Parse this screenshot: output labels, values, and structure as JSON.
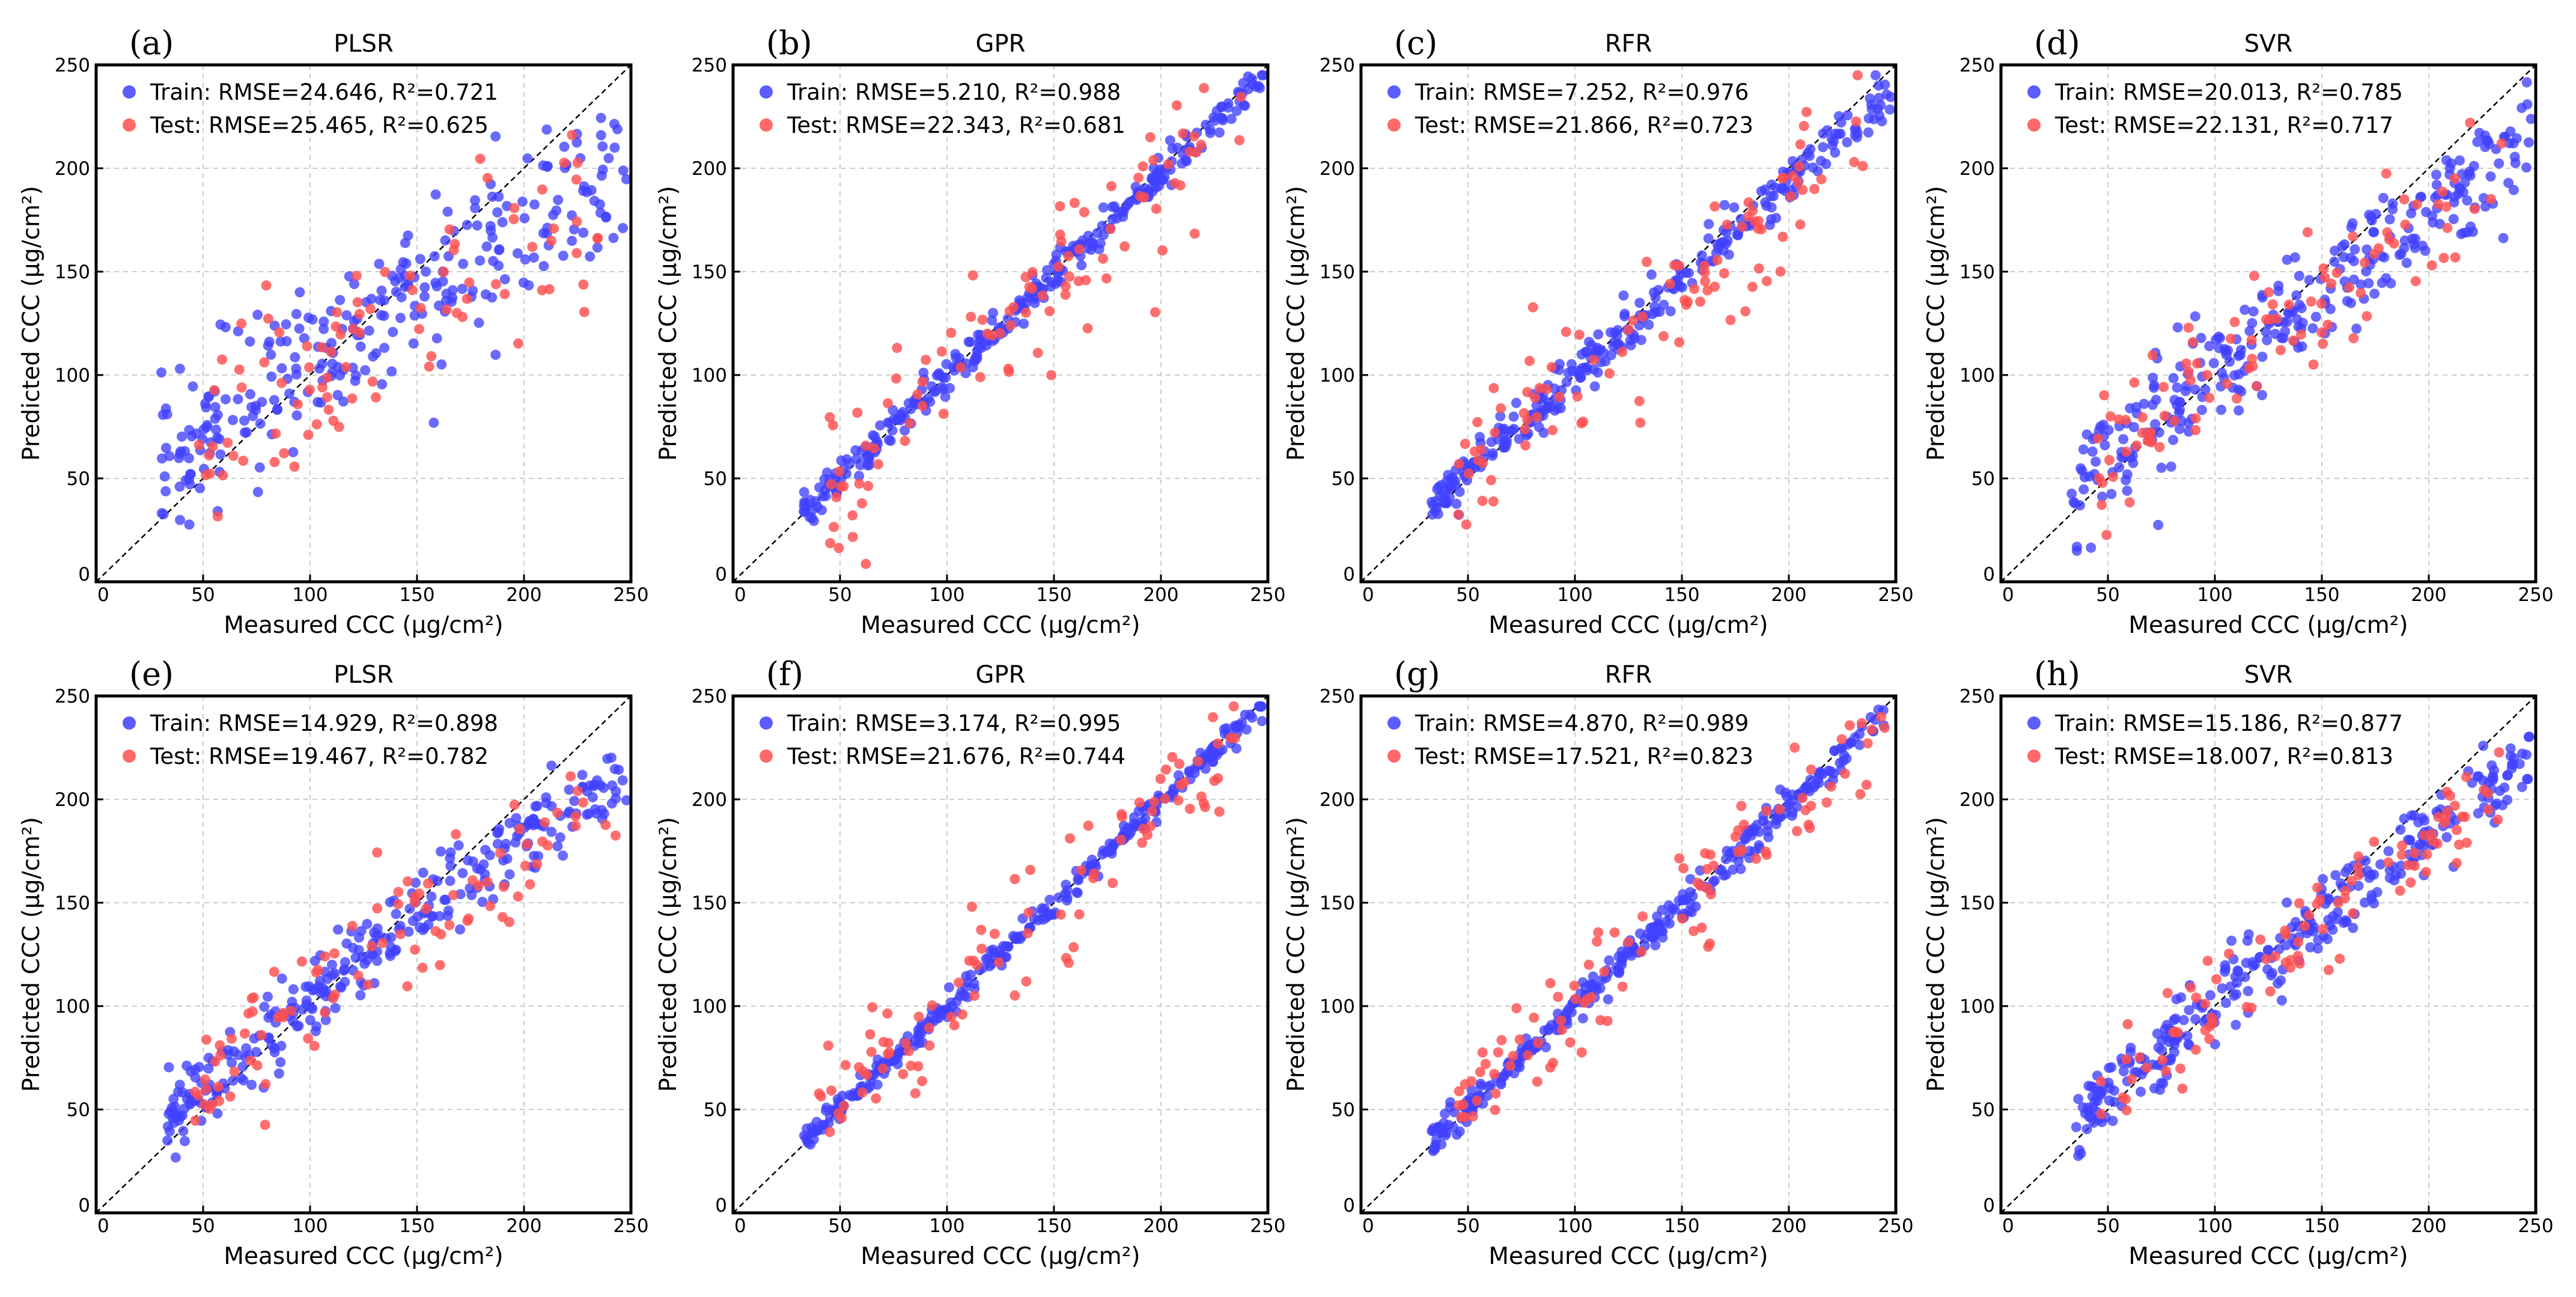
{
  "figure": {
    "train_color": "#4040ff",
    "test_color": "#ff4f4f",
    "axis_color": "#000000",
    "grid_color": "#cccccc",
    "identity_line_color": "#000000"
  },
  "chart_data": [
    {
      "type": "scatter",
      "panel_label": "(a)",
      "title": "PLSR",
      "xlabel": "Measured CCC (μg/cm²)",
      "ylabel": "Predicted CCC (μg/cm²)",
      "xlim": [
        0,
        250
      ],
      "ylim": [
        0,
        250
      ],
      "xticks": [
        "0",
        "50",
        "100",
        "150",
        "200",
        "250"
      ],
      "yticks": [
        "0",
        "50",
        "100",
        "150",
        "200",
        "250"
      ],
      "grid": true,
      "identity_line": true,
      "legend_position": "top-left",
      "train": {
        "label": "Train: RMSE=24.646, R²=0.721",
        "slope": 0.69,
        "intercept": 36,
        "noise": 18,
        "curvature": 0.0012,
        "n": 280,
        "x_range": [
          30,
          248
        ],
        "seed": 11
      },
      "test": {
        "label": "Test: RMSE=25.465, R²=0.625",
        "slope": 0.62,
        "intercept": 42,
        "noise": 22,
        "curvature": 0.0012,
        "n": 90,
        "x_range": [
          48,
          235
        ],
        "seed": 12
      }
    },
    {
      "type": "scatter",
      "panel_label": "(b)",
      "title": "GPR",
      "xlabel": "Measured CCC (μg/cm²)",
      "ylabel": "Predicted CCC (μg/cm²)",
      "xlim": [
        0,
        250
      ],
      "ylim": [
        0,
        250
      ],
      "xticks": [
        "0",
        "50",
        "100",
        "150",
        "200",
        "250"
      ],
      "yticks": [
        "0",
        "50",
        "100",
        "150",
        "200",
        "250"
      ],
      "grid": true,
      "identity_line": true,
      "legend_position": "top-left",
      "train": {
        "label": "Train: RMSE=5.210, R²=0.988",
        "slope": 0.98,
        "intercept": 2,
        "noise": 4.5,
        "curvature": 0,
        "n": 300,
        "x_range": [
          33,
          248
        ],
        "seed": 21
      },
      "test": {
        "label": "Test: RMSE=22.343, R²=0.681",
        "slope": 0.93,
        "intercept": 7,
        "noise": 18,
        "curvature": 0,
        "n": 95,
        "x_range": [
          45,
          238
        ],
        "seed": 22
      }
    },
    {
      "type": "scatter",
      "panel_label": "(c)",
      "title": "RFR",
      "xlabel": "Measured CCC (μg/cm²)",
      "ylabel": "Predicted CCC (μg/cm²)",
      "xlim": [
        0,
        250
      ],
      "ylim": [
        0,
        250
      ],
      "xticks": [
        "0",
        "50",
        "100",
        "150",
        "200",
        "250"
      ],
      "yticks": [
        "0",
        "50",
        "100",
        "150",
        "200",
        "250"
      ],
      "grid": true,
      "identity_line": true,
      "legend_position": "top-left",
      "train": {
        "label": "Train: RMSE=7.252, R²=0.976",
        "slope": 0.93,
        "intercept": 7,
        "noise": 6,
        "curvature": 0,
        "n": 300,
        "x_range": [
          33,
          248
        ],
        "seed": 31
      },
      "test": {
        "label": "Test: RMSE=21.866, R²=0.723",
        "slope": 0.86,
        "intercept": 14,
        "noise": 17,
        "curvature": 0,
        "n": 95,
        "x_range": [
          45,
          235
        ],
        "seed": 32
      }
    },
    {
      "type": "scatter",
      "panel_label": "(d)",
      "title": "SVR",
      "xlabel": "Measured CCC (μg/cm²)",
      "ylabel": "Predicted CCC (μg/cm²)",
      "xlim": [
        0,
        250
      ],
      "ylim": [
        0,
        250
      ],
      "xticks": [
        "0",
        "50",
        "100",
        "150",
        "200",
        "250"
      ],
      "yticks": [
        "0",
        "50",
        "100",
        "150",
        "200",
        "250"
      ],
      "grid": true,
      "identity_line": true,
      "legend_position": "top-left",
      "train": {
        "label": "Train: RMSE=20.013, R²=0.785",
        "slope": 0.8,
        "intercept": 20,
        "noise": 14,
        "curvature": 0.0008,
        "n": 300,
        "x_range": [
          33,
          248
        ],
        "seed": 41
      },
      "test": {
        "label": "Test: RMSE=22.131, R²=0.717",
        "slope": 0.76,
        "intercept": 24,
        "noise": 17,
        "curvature": 0.0008,
        "n": 95,
        "x_range": [
          45,
          235
        ],
        "seed": 42
      }
    },
    {
      "type": "scatter",
      "panel_label": "(e)",
      "title": "PLSR",
      "xlabel": "Measured CCC (μg/cm²)",
      "ylabel": "Predicted CCC (μg/cm²)",
      "xlim": [
        0,
        250
      ],
      "ylim": [
        0,
        250
      ],
      "xticks": [
        "0",
        "50",
        "100",
        "150",
        "200",
        "250"
      ],
      "yticks": [
        "0",
        "50",
        "100",
        "150",
        "200",
        "250"
      ],
      "grid": true,
      "identity_line": true,
      "legend_position": "top-left",
      "train": {
        "label": "Train: RMSE=14.929, R²=0.898",
        "slope": 0.84,
        "intercept": 18,
        "noise": 9,
        "curvature": 0.0016,
        "n": 300,
        "x_range": [
          33,
          248
        ],
        "seed": 51
      },
      "test": {
        "label": "Test: RMSE=19.467, R²=0.782",
        "slope": 0.82,
        "intercept": 20,
        "noise": 14,
        "curvature": 0.0016,
        "n": 95,
        "x_range": [
          45,
          245
        ],
        "seed": 52
      }
    },
    {
      "type": "scatter",
      "panel_label": "(f)",
      "title": "GPR",
      "xlabel": "Measured CCC (μg/cm²)",
      "ylabel": "Predicted CCC (μg/cm²)",
      "xlim": [
        0,
        250
      ],
      "ylim": [
        0,
        250
      ],
      "xticks": [
        "0",
        "50",
        "100",
        "150",
        "200",
        "250"
      ],
      "yticks": [
        "0",
        "50",
        "100",
        "150",
        "200",
        "250"
      ],
      "grid": true,
      "identity_line": true,
      "legend_position": "top-left",
      "train": {
        "label": "Train: RMSE=3.174, R²=0.995",
        "slope": 0.99,
        "intercept": 1,
        "noise": 3,
        "curvature": 0,
        "n": 300,
        "x_range": [
          33,
          248
        ],
        "seed": 61
      },
      "test": {
        "label": "Test: RMSE=21.676, R²=0.744",
        "slope": 0.97,
        "intercept": 3,
        "noise": 17,
        "curvature": 0,
        "n": 95,
        "x_range": [
          40,
          238
        ],
        "seed": 62
      }
    },
    {
      "type": "scatter",
      "panel_label": "(g)",
      "title": "RFR",
      "xlabel": "Measured CCC (μg/cm²)",
      "ylabel": "Predicted CCC (μg/cm²)",
      "xlim": [
        0,
        250
      ],
      "ylim": [
        0,
        250
      ],
      "xticks": [
        "0",
        "50",
        "100",
        "150",
        "200",
        "250"
      ],
      "yticks": [
        "0",
        "50",
        "100",
        "150",
        "200",
        "250"
      ],
      "grid": true,
      "identity_line": true,
      "legend_position": "top-left",
      "train": {
        "label": "Train: RMSE=4.870, R²=0.989",
        "slope": 0.97,
        "intercept": 3,
        "noise": 4,
        "curvature": 0,
        "n": 300,
        "x_range": [
          33,
          248
        ],
        "seed": 71
      },
      "test": {
        "label": "Test: RMSE=17.521, R²=0.823",
        "slope": 0.92,
        "intercept": 8,
        "noise": 14,
        "curvature": 0,
        "n": 95,
        "x_range": [
          45,
          245
        ],
        "seed": 72
      }
    },
    {
      "type": "scatter",
      "panel_label": "(h)",
      "title": "SVR",
      "xlabel": "Measured CCC (μg/cm²)",
      "ylabel": "Predicted CCC (μg/cm²)",
      "xlim": [
        0,
        250
      ],
      "ylim": [
        0,
        250
      ],
      "xticks": [
        "0",
        "50",
        "100",
        "150",
        "200",
        "250"
      ],
      "yticks": [
        "0",
        "50",
        "100",
        "150",
        "200",
        "250"
      ],
      "grid": true,
      "identity_line": true,
      "legend_position": "top-left",
      "train": {
        "label": "Train: RMSE=15.186, R²=0.877",
        "slope": 0.86,
        "intercept": 14,
        "noise": 9,
        "curvature": 0.0006,
        "n": 300,
        "x_range": [
          33,
          248
        ],
        "seed": 81
      },
      "test": {
        "label": "Test: RMSE=18.007, R²=0.813",
        "slope": 0.84,
        "intercept": 17,
        "noise": 13,
        "curvature": 0.0006,
        "n": 95,
        "x_range": [
          45,
          245
        ],
        "seed": 82
      }
    }
  ]
}
